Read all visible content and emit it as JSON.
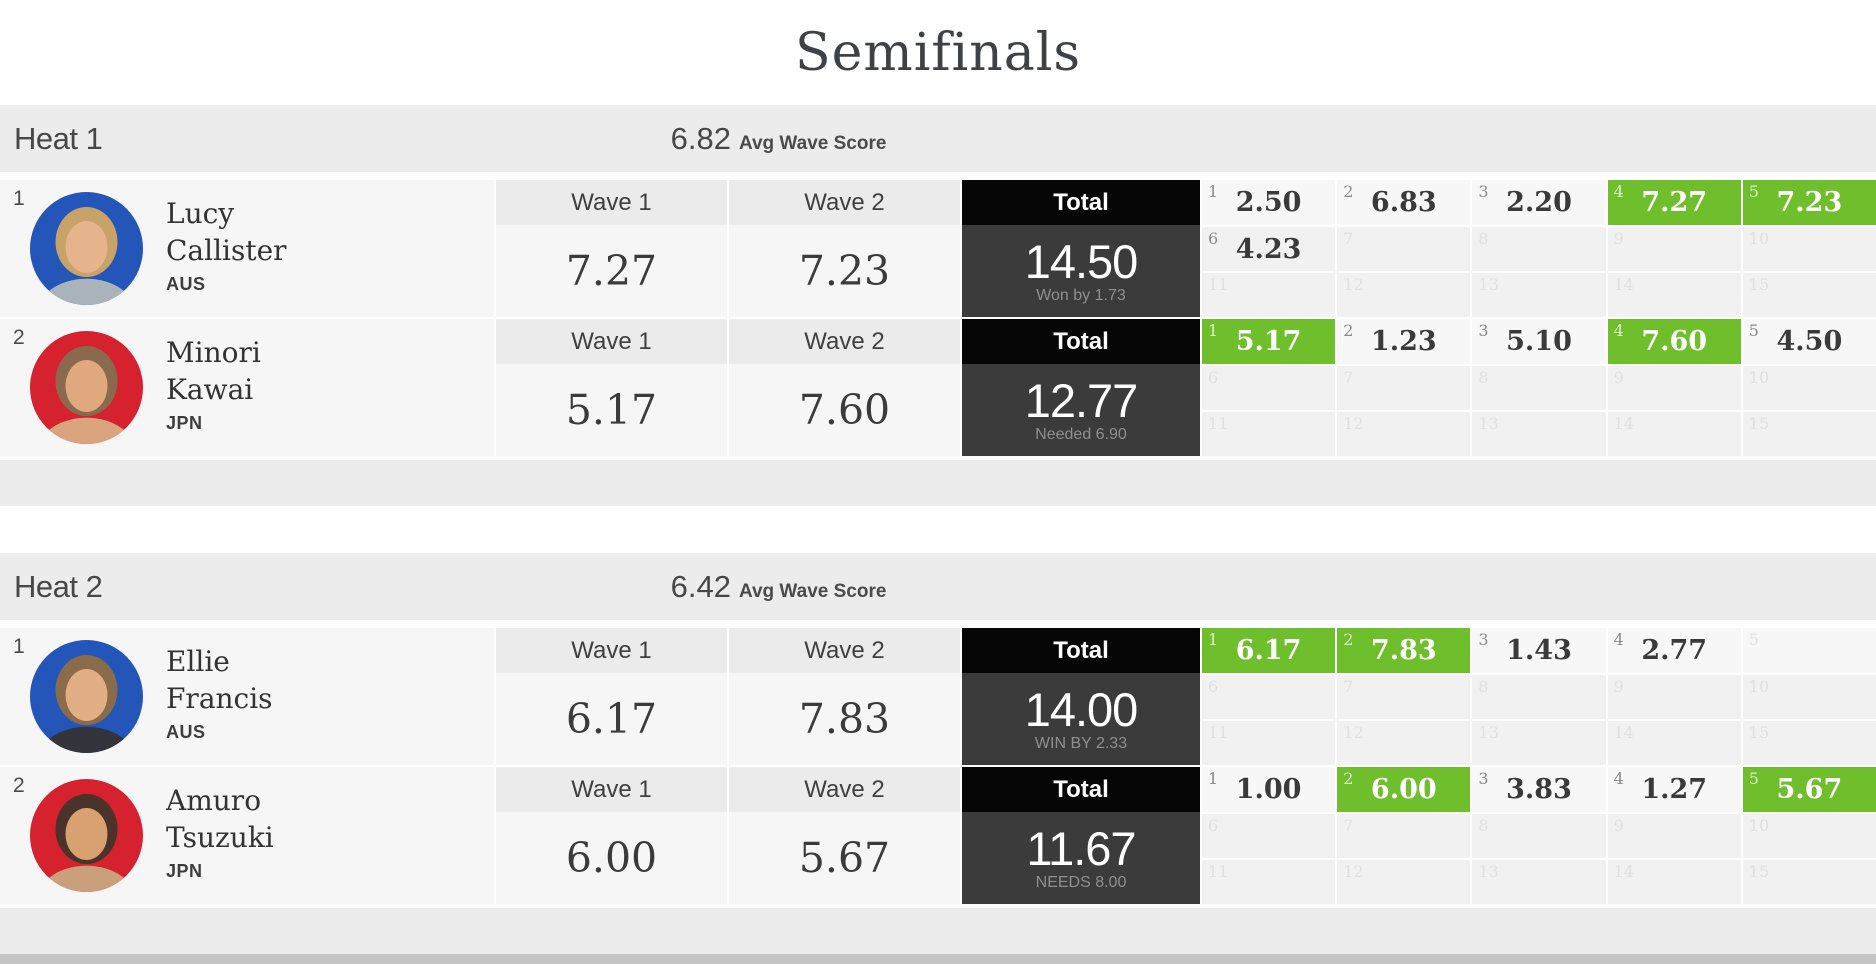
{
  "page": {
    "title": "Semifinals"
  },
  "columns": {
    "wave1": "Wave 1",
    "wave2": "Wave 2",
    "total": "Total"
  },
  "colors": {
    "highlight_green": "#6fbe2c",
    "total_header_bg": "#060606",
    "total_body_bg": "#3b3b3b",
    "header_gray": "#ececec",
    "avatar_blue": "#2356b8",
    "avatar_red": "#d6212e"
  },
  "heats": [
    {
      "label": "Heat 1",
      "avg_score": "6.82",
      "avg_label": "Avg Wave Score",
      "athletes": [
        {
          "place": "1",
          "first_name": "Lucy",
          "last_name": "Callister",
          "country": "AUS",
          "avatar": {
            "bg": "#2356b8",
            "hair": "#c9a268",
            "skin": "#e5b48c",
            "shirt": "#aab3ba"
          },
          "wave1": "7.27",
          "wave2": "7.23",
          "total": "14.50",
          "total_note": "Won by 1.73",
          "waves": [
            {
              "n": "1",
              "v": "2.50",
              "hl": false
            },
            {
              "n": "2",
              "v": "6.83",
              "hl": false
            },
            {
              "n": "3",
              "v": "2.20",
              "hl": false
            },
            {
              "n": "4",
              "v": "7.27",
              "hl": true
            },
            {
              "n": "5",
              "v": "7.23",
              "hl": true
            },
            {
              "n": "6",
              "v": "4.23",
              "hl": false
            },
            {
              "n": "7",
              "v": "",
              "hl": false
            },
            {
              "n": "8",
              "v": "",
              "hl": false
            },
            {
              "n": "9",
              "v": "",
              "hl": false
            },
            {
              "n": "10",
              "v": "",
              "hl": false
            },
            {
              "n": "11",
              "v": "",
              "hl": false
            },
            {
              "n": "12",
              "v": "",
              "hl": false
            },
            {
              "n": "13",
              "v": "",
              "hl": false
            },
            {
              "n": "14",
              "v": "",
              "hl": false
            },
            {
              "n": "15",
              "v": "",
              "hl": false
            }
          ]
        },
        {
          "place": "2",
          "first_name": "Minori",
          "last_name": "Kawai",
          "country": "JPN",
          "avatar": {
            "bg": "#d6212e",
            "hair": "#8a6a4f",
            "skin": "#dfa87e",
            "shirt": "#d9a47e"
          },
          "wave1": "5.17",
          "wave2": "7.60",
          "total": "12.77",
          "total_note": "Needed 6.90",
          "waves": [
            {
              "n": "1",
              "v": "5.17",
              "hl": true
            },
            {
              "n": "2",
              "v": "1.23",
              "hl": false
            },
            {
              "n": "3",
              "v": "5.10",
              "hl": false
            },
            {
              "n": "4",
              "v": "7.60",
              "hl": true
            },
            {
              "n": "5",
              "v": "4.50",
              "hl": false
            },
            {
              "n": "6",
              "v": "",
              "hl": false
            },
            {
              "n": "7",
              "v": "",
              "hl": false
            },
            {
              "n": "8",
              "v": "",
              "hl": false
            },
            {
              "n": "9",
              "v": "",
              "hl": false
            },
            {
              "n": "10",
              "v": "",
              "hl": false
            },
            {
              "n": "11",
              "v": "",
              "hl": false
            },
            {
              "n": "12",
              "v": "",
              "hl": false
            },
            {
              "n": "13",
              "v": "",
              "hl": false
            },
            {
              "n": "14",
              "v": "",
              "hl": false
            },
            {
              "n": "15",
              "v": "",
              "hl": false
            }
          ]
        }
      ]
    },
    {
      "label": "Heat 2",
      "avg_score": "6.42",
      "avg_label": "Avg Wave Score",
      "athletes": [
        {
          "place": "1",
          "first_name": "Ellie",
          "last_name": "Francis",
          "country": "AUS",
          "avatar": {
            "bg": "#2356b8",
            "hair": "#8a6b4a",
            "skin": "#e2ae85",
            "shirt": "#33353c"
          },
          "wave1": "6.17",
          "wave2": "7.83",
          "total": "14.00",
          "total_note": "WIN BY 2.33",
          "waves": [
            {
              "n": "1",
              "v": "6.17",
              "hl": true
            },
            {
              "n": "2",
              "v": "7.83",
              "hl": true
            },
            {
              "n": "3",
              "v": "1.43",
              "hl": false
            },
            {
              "n": "4",
              "v": "2.77",
              "hl": false
            },
            {
              "n": "5",
              "v": "",
              "hl": false
            },
            {
              "n": "6",
              "v": "",
              "hl": false
            },
            {
              "n": "7",
              "v": "",
              "hl": false
            },
            {
              "n": "8",
              "v": "",
              "hl": false
            },
            {
              "n": "9",
              "v": "",
              "hl": false
            },
            {
              "n": "10",
              "v": "",
              "hl": false
            },
            {
              "n": "11",
              "v": "",
              "hl": false
            },
            {
              "n": "12",
              "v": "",
              "hl": false
            },
            {
              "n": "13",
              "v": "",
              "hl": false
            },
            {
              "n": "14",
              "v": "",
              "hl": false
            },
            {
              "n": "15",
              "v": "",
              "hl": false
            }
          ]
        },
        {
          "place": "2",
          "first_name": "Amuro",
          "last_name": "Tsuzuki",
          "country": "JPN",
          "avatar": {
            "bg": "#d6212e",
            "hair": "#4a332a",
            "skin": "#d9a071",
            "shirt": "#caa07c"
          },
          "wave1": "6.00",
          "wave2": "5.67",
          "total": "11.67",
          "total_note": "NEEDS 8.00",
          "waves": [
            {
              "n": "1",
              "v": "1.00",
              "hl": false
            },
            {
              "n": "2",
              "v": "6.00",
              "hl": true
            },
            {
              "n": "3",
              "v": "3.83",
              "hl": false
            },
            {
              "n": "4",
              "v": "1.27",
              "hl": false
            },
            {
              "n": "5",
              "v": "5.67",
              "hl": true
            },
            {
              "n": "6",
              "v": "",
              "hl": false
            },
            {
              "n": "7",
              "v": "",
              "hl": false
            },
            {
              "n": "8",
              "v": "",
              "hl": false
            },
            {
              "n": "9",
              "v": "",
              "hl": false
            },
            {
              "n": "10",
              "v": "",
              "hl": false
            },
            {
              "n": "11",
              "v": "",
              "hl": false
            },
            {
              "n": "12",
              "v": "",
              "hl": false
            },
            {
              "n": "13",
              "v": "",
              "hl": false
            },
            {
              "n": "14",
              "v": "",
              "hl": false
            },
            {
              "n": "15",
              "v": "",
              "hl": false
            }
          ]
        }
      ]
    }
  ]
}
